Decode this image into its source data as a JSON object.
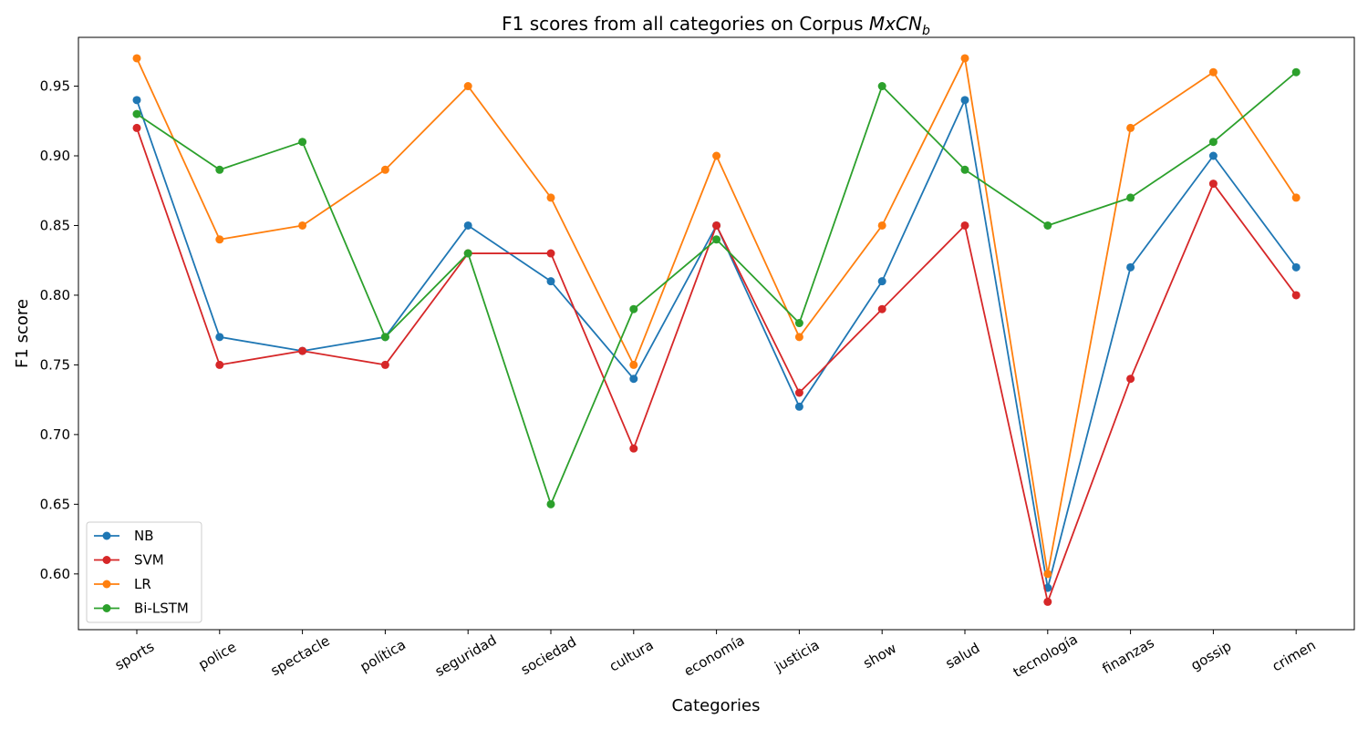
{
  "chart_data": {
    "type": "line",
    "title": "F1 scores from all categories on Corpus ",
    "title_math": "MxCN",
    "title_math_sub": "b",
    "xlabel": "Categories",
    "ylabel": "F1 score",
    "ylim": [
      0.56,
      0.985
    ],
    "yticks": [
      "0.60",
      "0.65",
      "0.70",
      "0.75",
      "0.80",
      "0.85",
      "0.90",
      "0.95"
    ],
    "categories": [
      "sports",
      "police",
      "spectacle",
      "política",
      "seguridad",
      "sociedad",
      "cultura",
      "economía",
      "justicia",
      "show",
      "salud",
      "tecnología",
      "finanzas",
      "gossip",
      "crimen"
    ],
    "grid": false,
    "legend_position": "lower-left",
    "series": [
      {
        "name": "NB",
        "color": "#1f77b4",
        "values": [
          0.94,
          0.77,
          0.76,
          0.77,
          0.85,
          0.81,
          0.74,
          0.85,
          0.72,
          0.81,
          0.94,
          0.59,
          0.82,
          0.9,
          0.82
        ]
      },
      {
        "name": "SVM",
        "color": "#d62728",
        "values": [
          0.92,
          0.75,
          0.76,
          0.75,
          0.83,
          0.83,
          0.69,
          0.85,
          0.73,
          0.79,
          0.85,
          0.58,
          0.74,
          0.88,
          0.8
        ]
      },
      {
        "name": "LR",
        "color": "#ff7f0e",
        "values": [
          0.97,
          0.84,
          0.85,
          0.89,
          0.95,
          0.87,
          0.75,
          0.9,
          0.77,
          0.85,
          0.97,
          0.6,
          0.92,
          0.96,
          0.87
        ]
      },
      {
        "name": "Bi-LSTM",
        "color": "#2ca02c",
        "values": [
          0.93,
          0.89,
          0.91,
          0.77,
          0.83,
          0.65,
          0.79,
          0.84,
          0.78,
          0.95,
          0.89,
          0.85,
          0.87,
          0.91,
          0.96
        ]
      }
    ]
  }
}
